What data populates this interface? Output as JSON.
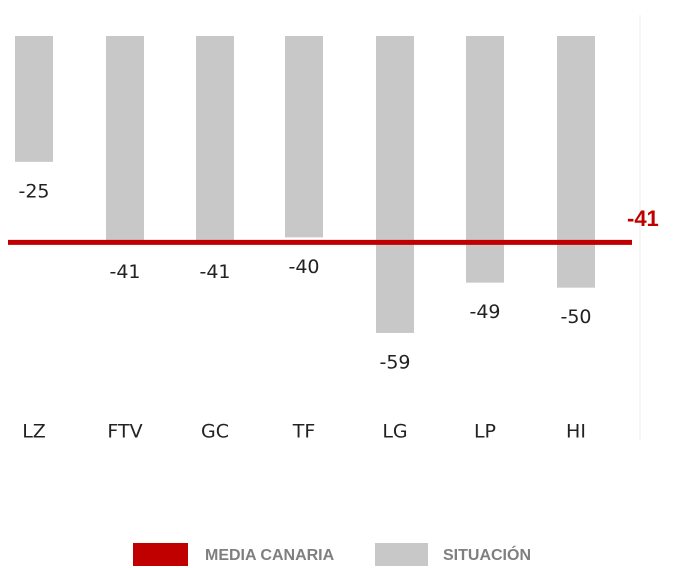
{
  "chart_data": {
    "type": "bar",
    "categories": [
      "LZ",
      "FTV",
      "GC",
      "TF",
      "LG",
      "LP",
      "HI"
    ],
    "series": [
      {
        "name": "SITUACIÓN",
        "color": "#c8c8c8",
        "values": [
          -25,
          -41,
          -41,
          -40,
          -59,
          -49,
          -50
        ]
      }
    ],
    "reference_line": {
      "name": "MEDIA CANARIA",
      "value": -41,
      "color": "#c00000"
    },
    "ylim": [
      -60,
      0
    ]
  }
}
